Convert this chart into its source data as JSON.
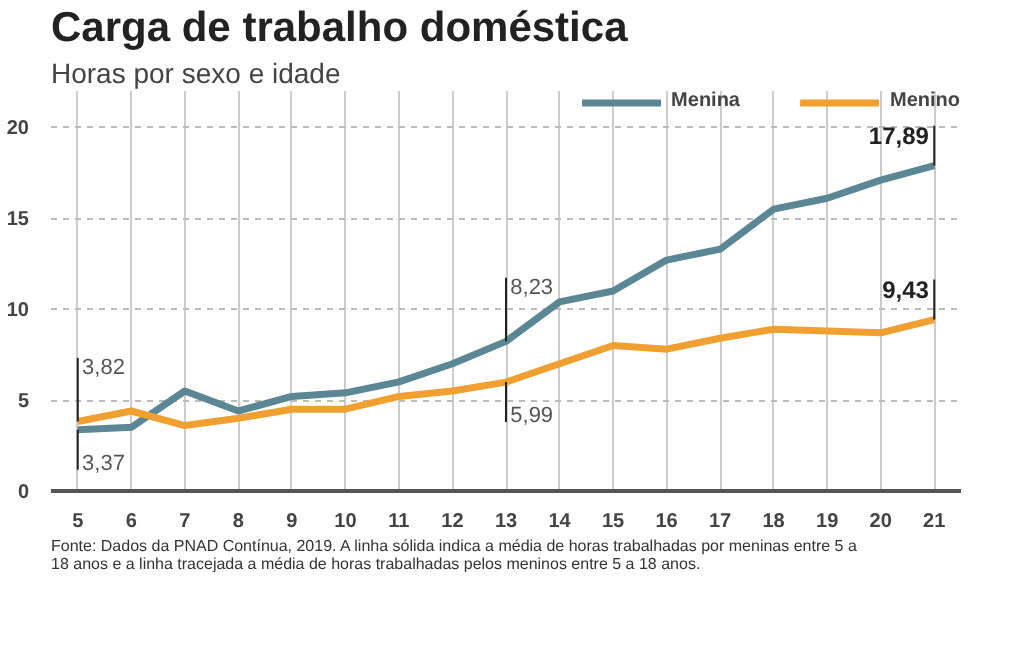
{
  "chart_data": {
    "type": "line",
    "title": "Carga de trabalho doméstica",
    "subtitle": "Horas por sexo e idade",
    "x": [
      5,
      6,
      7,
      8,
      9,
      10,
      11,
      12,
      13,
      14,
      15,
      16,
      17,
      18,
      19,
      20,
      21
    ],
    "xlim": [
      4.5,
      21.5
    ],
    "xticks": [
      5,
      6,
      7,
      8,
      9,
      10,
      11,
      12,
      13,
      14,
      15,
      16,
      17,
      18,
      19,
      20,
      21
    ],
    "ylim": [
      0,
      22
    ],
    "yticks": [
      0,
      5,
      10,
      15,
      20
    ],
    "grid": true,
    "legend": "top right",
    "series": [
      {
        "name": "Menina",
        "color": "#5b8694",
        "values": [
          3.37,
          3.5,
          5.5,
          4.4,
          5.2,
          5.4,
          6.0,
          7.0,
          8.23,
          10.4,
          11.0,
          12.7,
          13.3,
          15.5,
          16.1,
          17.1,
          17.89
        ],
        "value_labels": [
          "3,37",
          null,
          null,
          null,
          null,
          null,
          null,
          null,
          "8,23",
          null,
          null,
          null,
          null,
          null,
          null,
          null,
          "17,89"
        ]
      },
      {
        "name": "Menino",
        "color": "#f0a030",
        "values": [
          3.82,
          4.4,
          3.6,
          4.0,
          4.5,
          4.5,
          5.2,
          5.5,
          5.99,
          7.0,
          8.0,
          7.8,
          8.4,
          8.9,
          8.8,
          8.7,
          9.43
        ],
        "value_labels": [
          "3,82",
          null,
          null,
          null,
          null,
          null,
          null,
          null,
          "5,99",
          null,
          null,
          null,
          null,
          null,
          null,
          null,
          "9,43"
        ]
      }
    ],
    "annotations": [
      "Fonte: Dados da PNAD Contínua, 2019. A linha sólida indica a média de horas trabalhadas por meninas entre 5 a 18 anos e a linha tracejada a média de horas trabalhadas pelos meninos entre 5 a 18 anos."
    ]
  }
}
